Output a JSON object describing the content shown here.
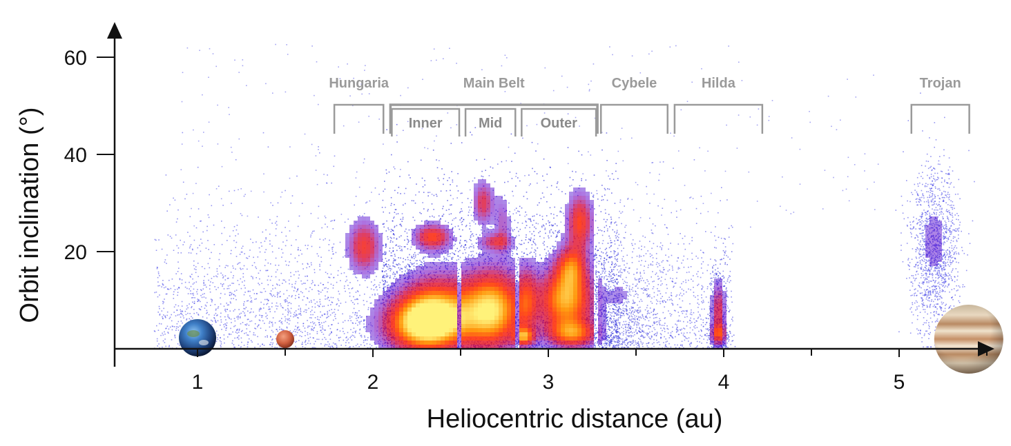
{
  "chart_data": {
    "type": "heatmap",
    "xlabel": "Heliocentric distance (au)",
    "ylabel": "Orbit inclination (°)",
    "xlim": [
      0.5,
      5.55
    ],
    "ylim": [
      0,
      65
    ],
    "x_ticks": [
      1,
      2,
      3,
      4,
      5
    ],
    "y_ticks": [
      20,
      40,
      60
    ],
    "x_tick_labels": [
      "1",
      "2",
      "3",
      "4",
      "5"
    ],
    "y_tick_labels": [
      "20",
      "40",
      "60"
    ],
    "grid": false,
    "colormap": [
      "#2a2ae0",
      "#6a00c8",
      "#d0003a",
      "#ff3b1a",
      "#ff9a10",
      "#fff27a"
    ],
    "regions": [
      {
        "label": "Hungaria",
        "x_range": [
          1.78,
          2.06
        ]
      },
      {
        "label": "Main Belt",
        "x_range": [
          2.1,
          3.28
        ],
        "subregions": [
          {
            "label": "Inner",
            "x_range": [
              2.1,
              2.5
            ]
          },
          {
            "label": "Mid",
            "x_range": [
              2.52,
              2.82
            ]
          },
          {
            "label": "Outer",
            "x_range": [
              2.84,
              3.28
            ]
          }
        ]
      },
      {
        "label": "Cybele",
        "x_range": [
          3.3,
          3.68
        ]
      },
      {
        "label": "Hilda",
        "x_range": [
          3.72,
          4.22
        ]
      },
      {
        "label": "Trojan",
        "x_range": [
          5.07,
          5.4
        ]
      }
    ],
    "density_clusters": [
      {
        "x": 1.95,
        "y": 21,
        "sx": 0.06,
        "sy": 3.5,
        "peak": 0.55
      },
      {
        "x": 2.34,
        "y": 23,
        "sx": 0.07,
        "sy": 1.8,
        "peak": 0.6
      },
      {
        "x": 2.3,
        "y": 5,
        "sx": 0.16,
        "sy": 4,
        "peak": 1.0
      },
      {
        "x": 2.36,
        "y": 9,
        "sx": 0.14,
        "sy": 5,
        "peak": 0.5
      },
      {
        "x": 2.68,
        "y": 8,
        "sx": 0.12,
        "sy": 5.5,
        "peak": 0.95
      },
      {
        "x": 2.63,
        "y": 30,
        "sx": 0.04,
        "sy": 3,
        "peak": 0.45
      },
      {
        "x": 2.7,
        "y": 22,
        "sx": 0.06,
        "sy": 1.2,
        "peak": 0.4
      },
      {
        "x": 2.74,
        "y": 26,
        "sx": 0.03,
        "sy": 4,
        "peak": 0.25
      },
      {
        "x": 2.86,
        "y": 2.5,
        "sx": 0.04,
        "sy": 1.2,
        "peak": 0.6
      },
      {
        "x": 2.88,
        "y": 10,
        "sx": 0.04,
        "sy": 5,
        "peak": 0.35
      },
      {
        "x": 3.1,
        "y": 10,
        "sx": 0.11,
        "sy": 4.5,
        "peak": 0.85
      },
      {
        "x": 3.14,
        "y": 3,
        "sx": 0.1,
        "sy": 2,
        "peak": 0.6
      },
      {
        "x": 3.18,
        "y": 26,
        "sx": 0.05,
        "sy": 4,
        "peak": 0.6
      },
      {
        "x": 3.13,
        "y": 17,
        "sx": 0.06,
        "sy": 3,
        "peak": 0.55
      },
      {
        "x": 3.42,
        "y": 11,
        "sx": 0.06,
        "sy": 3.5,
        "peak": 0.12
      },
      {
        "x": 3.97,
        "y": 8,
        "sx": 0.025,
        "sy": 4,
        "peak": 0.45
      },
      {
        "x": 3.97,
        "y": 3,
        "sx": 0.03,
        "sy": 1.5,
        "peak": 0.5
      },
      {
        "x": 5.2,
        "y": 22,
        "sx": 0.07,
        "sy": 7,
        "peak": 0.16
      }
    ],
    "planet_markers": [
      {
        "name": "Earth",
        "x": 1.0
      },
      {
        "name": "Mars",
        "x": 1.5
      },
      {
        "name": "Jupiter",
        "x": 5.2
      }
    ]
  }
}
